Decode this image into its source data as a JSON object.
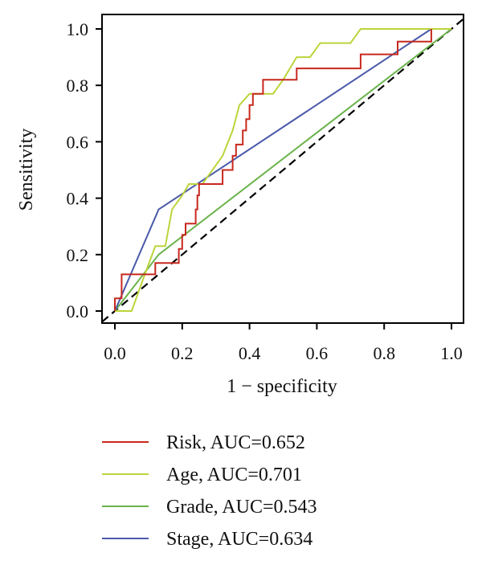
{
  "chart_data": {
    "type": "line",
    "title": "",
    "xlabel": "1 − specificity",
    "ylabel": "Sensitivity",
    "xlim": [
      0,
      1
    ],
    "ylim": [
      0,
      1
    ],
    "xticks": [
      "0.0",
      "0.2",
      "0.4",
      "0.6",
      "0.8",
      "1.0"
    ],
    "yticks": [
      "0.0",
      "0.2",
      "0.4",
      "0.6",
      "0.8",
      "1.0"
    ],
    "grid": false,
    "legend_position": "bottom",
    "reference_line": {
      "style": "dashed",
      "color": "#000000",
      "x": [
        0,
        1
      ],
      "y": [
        0,
        1
      ]
    },
    "series": [
      {
        "name": "Risk, AUC=0.652",
        "color": "#c8281e",
        "x": [
          0,
          0,
          0.02,
          0.02,
          0.12,
          0.12,
          0.19,
          0.19,
          0.2,
          0.2,
          0.21,
          0.21,
          0.24,
          0.24,
          0.245,
          0.245,
          0.25,
          0.25,
          0.32,
          0.32,
          0.35,
          0.35,
          0.36,
          0.36,
          0.38,
          0.38,
          0.39,
          0.39,
          0.4,
          0.4,
          0.41,
          0.41,
          0.44,
          0.44,
          0.45,
          0.45,
          0.54,
          0.54,
          0.73,
          0.73,
          0.84,
          0.84,
          0.94,
          0.94
        ],
        "y": [
          0,
          0.045,
          0.045,
          0.13,
          0.13,
          0.17,
          0.17,
          0.22,
          0.22,
          0.27,
          0.27,
          0.31,
          0.31,
          0.36,
          0.36,
          0.41,
          0.41,
          0.45,
          0.45,
          0.5,
          0.5,
          0.55,
          0.55,
          0.59,
          0.59,
          0.64,
          0.64,
          0.68,
          0.68,
          0.73,
          0.73,
          0.77,
          0.77,
          0.82,
          0.82,
          0.82,
          0.82,
          0.86,
          0.86,
          0.91,
          0.91,
          0.955,
          0.955,
          1.0
        ]
      },
      {
        "name": "Age, AUC=0.701",
        "color": "#bcd43a",
        "x": [
          0,
          0.05,
          0.08,
          0.12,
          0.15,
          0.17,
          0.2,
          0.22,
          0.26,
          0.29,
          0.32,
          0.35,
          0.37,
          0.4,
          0.47,
          0.5,
          0.54,
          0.58,
          0.61,
          0.7,
          0.73,
          0.85,
          0.94,
          1.0
        ],
        "y": [
          0,
          0,
          0.1,
          0.23,
          0.23,
          0.36,
          0.41,
          0.45,
          0.45,
          0.5,
          0.55,
          0.64,
          0.73,
          0.77,
          0.77,
          0.82,
          0.9,
          0.9,
          0.95,
          0.95,
          1.0,
          1.0,
          1.0,
          1.0
        ]
      },
      {
        "name": "Grade, AUC=0.543",
        "color": "#6ab34a",
        "x": [
          0,
          0.13,
          1.0
        ],
        "y": [
          0,
          0.2,
          1.0
        ]
      },
      {
        "name": "Stage, AUC=0.634",
        "color": "#4a5aa8",
        "x": [
          0,
          0.13,
          0.94,
          1.0
        ],
        "y": [
          0,
          0.36,
          1.0,
          1.0
        ]
      }
    ]
  }
}
